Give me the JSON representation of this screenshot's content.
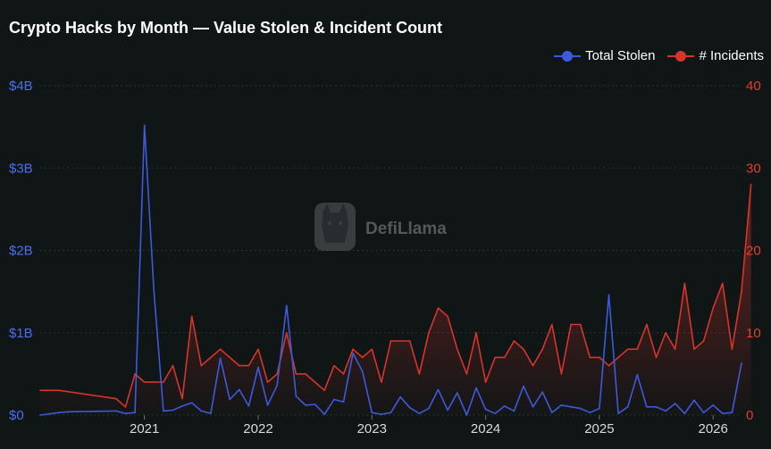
{
  "title": "Crypto Hacks by Month — Value Stolen & Incident Count",
  "watermark": "DefiLlama",
  "colors": {
    "background": "#101516",
    "stolen": "#3b5bdb",
    "incidents": "#d6352b",
    "left_axis_text": "#4d6ef0",
    "right_axis_text": "#e0402f",
    "grid": "#2a3134"
  },
  "chart_data": {
    "type": "line",
    "title": "Crypto Hacks by Month — Value Stolen & Incident Count",
    "legend_position": "top-right",
    "grid": true,
    "x_range": [
      "2020-02-01",
      "2026-04-01"
    ],
    "x_ticks": [
      "2021",
      "2022",
      "2023",
      "2024",
      "2025",
      "2026"
    ],
    "y_left": {
      "ylim": [
        0,
        4000000000
      ],
      "tick_labels": [
        "$0",
        "$1B",
        "$2B",
        "$3B",
        "$4B"
      ]
    },
    "y_right": {
      "ylim": [
        0,
        40
      ],
      "tick_labels": [
        "0",
        "10",
        "20",
        "30",
        "40"
      ]
    },
    "series": [
      {
        "name": "Total Stolen",
        "axis": "left",
        "color": "#3b5bdb",
        "points": [
          [
            "2020-02",
            0
          ],
          [
            "2020-04",
            30000000
          ],
          [
            "2020-05",
            40000000
          ],
          [
            "2020-10",
            50000000
          ],
          [
            "2020-11",
            20000000
          ],
          [
            "2020-12",
            30000000
          ],
          [
            "2021-01",
            3520000000
          ],
          [
            "2021-02",
            1500000000
          ],
          [
            "2021-03",
            50000000
          ],
          [
            "2021-04",
            60000000
          ],
          [
            "2021-05",
            110000000
          ],
          [
            "2021-06",
            150000000
          ],
          [
            "2021-07",
            50000000
          ],
          [
            "2021-08",
            20000000
          ],
          [
            "2021-09",
            690000000
          ],
          [
            "2021-10",
            190000000
          ],
          [
            "2021-11",
            310000000
          ],
          [
            "2021-12",
            110000000
          ],
          [
            "2022-01",
            580000000
          ],
          [
            "2022-02",
            120000000
          ],
          [
            "2022-03",
            360000000
          ],
          [
            "2022-04",
            1330000000
          ],
          [
            "2022-05",
            230000000
          ],
          [
            "2022-06",
            120000000
          ],
          [
            "2022-07",
            130000000
          ],
          [
            "2022-08",
            10000000
          ],
          [
            "2022-09",
            190000000
          ],
          [
            "2022-10",
            160000000
          ],
          [
            "2022-11",
            750000000
          ],
          [
            "2022-12",
            530000000
          ],
          [
            "2023-01",
            30000000
          ],
          [
            "2023-02",
            10000000
          ],
          [
            "2023-03",
            30000000
          ],
          [
            "2023-04",
            220000000
          ],
          [
            "2023-05",
            90000000
          ],
          [
            "2023-06",
            20000000
          ],
          [
            "2023-07",
            80000000
          ],
          [
            "2023-08",
            310000000
          ],
          [
            "2023-09",
            60000000
          ],
          [
            "2023-10",
            270000000
          ],
          [
            "2023-11",
            0
          ],
          [
            "2023-12",
            330000000
          ],
          [
            "2024-01",
            70000000
          ],
          [
            "2024-02",
            20000000
          ],
          [
            "2024-03",
            110000000
          ],
          [
            "2024-04",
            50000000
          ],
          [
            "2024-05",
            350000000
          ],
          [
            "2024-06",
            100000000
          ],
          [
            "2024-07",
            280000000
          ],
          [
            "2024-08",
            30000000
          ],
          [
            "2024-09",
            120000000
          ],
          [
            "2024-10",
            100000000
          ],
          [
            "2024-11",
            80000000
          ],
          [
            "2024-12",
            30000000
          ],
          [
            "2025-01",
            80000000
          ],
          [
            "2025-02",
            1460000000
          ],
          [
            "2025-03",
            20000000
          ],
          [
            "2025-04",
            100000000
          ],
          [
            "2025-05",
            490000000
          ],
          [
            "2025-06",
            100000000
          ],
          [
            "2025-07",
            100000000
          ],
          [
            "2025-08",
            50000000
          ],
          [
            "2025-09",
            140000000
          ],
          [
            "2025-10",
            20000000
          ],
          [
            "2025-11",
            180000000
          ],
          [
            "2025-12",
            30000000
          ],
          [
            "2026-01",
            120000000
          ],
          [
            "2026-02",
            20000000
          ],
          [
            "2026-03",
            30000000
          ],
          [
            "2026-04",
            630000000
          ]
        ]
      },
      {
        "name": "# Incidents",
        "axis": "right",
        "color": "#d6352b",
        "points": [
          [
            "2020-02",
            3
          ],
          [
            "2020-04",
            3
          ],
          [
            "2020-10",
            2
          ],
          [
            "2020-11",
            1
          ],
          [
            "2020-12",
            5
          ],
          [
            "2021-01",
            4
          ],
          [
            "2021-02",
            4
          ],
          [
            "2021-03",
            4
          ],
          [
            "2021-04",
            6
          ],
          [
            "2021-05",
            2
          ],
          [
            "2021-06",
            12
          ],
          [
            "2021-07",
            6
          ],
          [
            "2021-08",
            7
          ],
          [
            "2021-09",
            8
          ],
          [
            "2021-10",
            7
          ],
          [
            "2021-11",
            6
          ],
          [
            "2021-12",
            6
          ],
          [
            "2022-01",
            8
          ],
          [
            "2022-02",
            4
          ],
          [
            "2022-03",
            5
          ],
          [
            "2022-04",
            10
          ],
          [
            "2022-05",
            5
          ],
          [
            "2022-06",
            5
          ],
          [
            "2022-07",
            4
          ],
          [
            "2022-08",
            3
          ],
          [
            "2022-09",
            6
          ],
          [
            "2022-10",
            5
          ],
          [
            "2022-11",
            8
          ],
          [
            "2022-12",
            7
          ],
          [
            "2023-01",
            8
          ],
          [
            "2023-02",
            4
          ],
          [
            "2023-03",
            9
          ],
          [
            "2023-04",
            9
          ],
          [
            "2023-05",
            9
          ],
          [
            "2023-06",
            5
          ],
          [
            "2023-07",
            10
          ],
          [
            "2023-08",
            13
          ],
          [
            "2023-09",
            12
          ],
          [
            "2023-10",
            8
          ],
          [
            "2023-11",
            5
          ],
          [
            "2023-12",
            10
          ],
          [
            "2024-01",
            4
          ],
          [
            "2024-02",
            7
          ],
          [
            "2024-03",
            7
          ],
          [
            "2024-04",
            9
          ],
          [
            "2024-05",
            8
          ],
          [
            "2024-06",
            6
          ],
          [
            "2024-07",
            8
          ],
          [
            "2024-08",
            11
          ],
          [
            "2024-09",
            5
          ],
          [
            "2024-10",
            11
          ],
          [
            "2024-11",
            11
          ],
          [
            "2024-12",
            7
          ],
          [
            "2025-01",
            7
          ],
          [
            "2025-02",
            6
          ],
          [
            "2025-03",
            7
          ],
          [
            "2025-04",
            8
          ],
          [
            "2025-05",
            8
          ],
          [
            "2025-06",
            11
          ],
          [
            "2025-07",
            7
          ],
          [
            "2025-08",
            10
          ],
          [
            "2025-09",
            8
          ],
          [
            "2025-10",
            16
          ],
          [
            "2025-11",
            8
          ],
          [
            "2025-12",
            9
          ],
          [
            "2026-01",
            13
          ],
          [
            "2026-02",
            16
          ],
          [
            "2026-03",
            8
          ],
          [
            "2026-04",
            15
          ],
          [
            "2026-05",
            28
          ]
        ]
      }
    ]
  }
}
